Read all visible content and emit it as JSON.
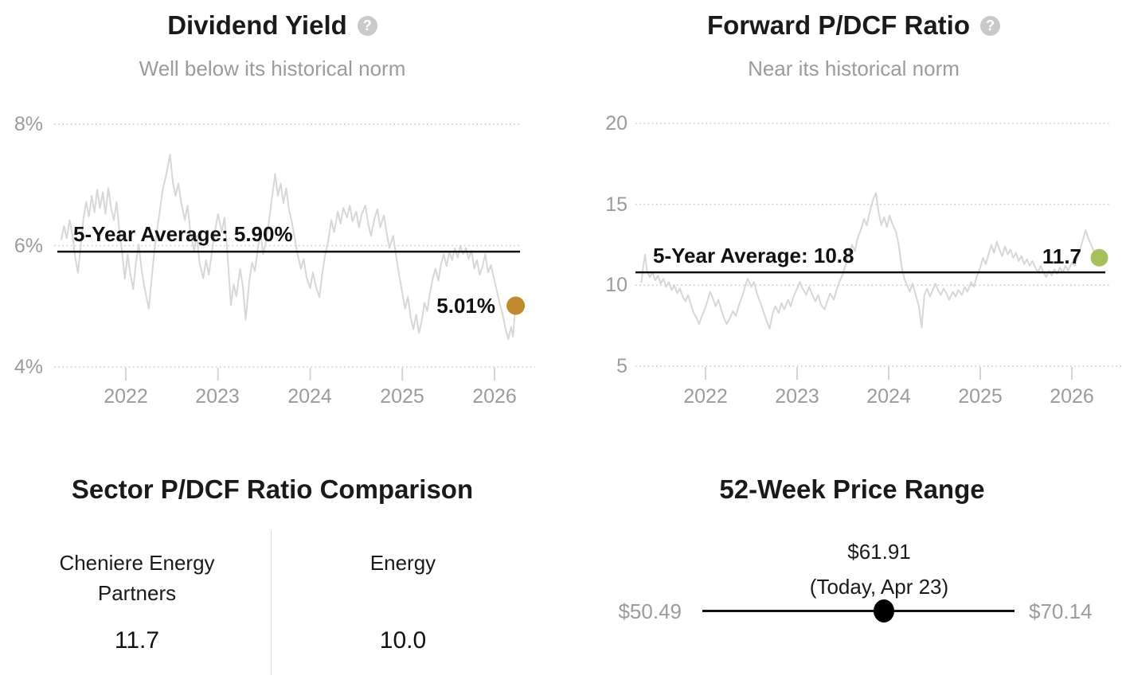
{
  "chart_data": [
    {
      "id": "dividend-yield",
      "type": "line",
      "title": "Dividend Yield",
      "subtitle": "Well below its historical norm",
      "help_glyph": "?",
      "y_tick_labels": [
        "8%",
        "6%",
        "4%"
      ],
      "y_tick_values": [
        8,
        6,
        4
      ],
      "x_tick_labels": [
        "2022",
        "2023",
        "2024",
        "2025",
        "2026"
      ],
      "x_tick_values": [
        2022,
        2023,
        2024,
        2025,
        2026
      ],
      "ylim": [
        4,
        8
      ],
      "xlim": [
        2021.3,
        2026.35
      ],
      "grid": "dotted horizontal",
      "average_label": "5-Year Average: 5.90%",
      "average_value": 5.9,
      "current_label": "5.01%",
      "current_value": 5.01,
      "dot_color": "#bf8b2e",
      "line_color": "#d7d7d7",
      "series": [
        [
          2021.3,
          6.1
        ],
        [
          2021.33,
          6.32
        ],
        [
          2021.36,
          6.12
        ],
        [
          2021.39,
          6.42
        ],
        [
          2021.42,
          6.18
        ],
        [
          2021.45,
          5.82
        ],
        [
          2021.48,
          5.55
        ],
        [
          2021.51,
          5.98
        ],
        [
          2021.54,
          6.45
        ],
        [
          2021.57,
          6.72
        ],
        [
          2021.6,
          6.48
        ],
        [
          2021.63,
          6.82
        ],
        [
          2021.66,
          6.55
        ],
        [
          2021.69,
          6.92
        ],
        [
          2021.72,
          6.62
        ],
        [
          2021.75,
          6.88
        ],
        [
          2021.78,
          6.52
        ],
        [
          2021.81,
          6.95
        ],
        [
          2021.84,
          6.62
        ],
        [
          2021.87,
          6.42
        ],
        [
          2021.9,
          6.72
        ],
        [
          2021.93,
          6.25
        ],
        [
          2021.96,
          5.88
        ],
        [
          2021.99,
          5.45
        ],
        [
          2022.02,
          5.85
        ],
        [
          2022.05,
          5.52
        ],
        [
          2022.08,
          5.28
        ],
        [
          2022.11,
          5.72
        ],
        [
          2022.14,
          6.02
        ],
        [
          2022.17,
          5.62
        ],
        [
          2022.2,
          5.32
        ],
        [
          2022.25,
          4.96
        ],
        [
          2022.28,
          5.45
        ],
        [
          2022.31,
          5.92
        ],
        [
          2022.34,
          6.28
        ],
        [
          2022.37,
          6.58
        ],
        [
          2022.4,
          6.92
        ],
        [
          2022.44,
          7.18
        ],
        [
          2022.48,
          7.5
        ],
        [
          2022.51,
          7.05
        ],
        [
          2022.54,
          6.82
        ],
        [
          2022.57,
          7.02
        ],
        [
          2022.6,
          6.72
        ],
        [
          2022.64,
          6.42
        ],
        [
          2022.67,
          6.66
        ],
        [
          2022.7,
          6.22
        ],
        [
          2022.74,
          5.92
        ],
        [
          2022.77,
          6.16
        ],
        [
          2022.8,
          5.72
        ],
        [
          2022.84,
          5.46
        ],
        [
          2022.87,
          5.76
        ],
        [
          2022.9,
          5.52
        ],
        [
          2022.94,
          5.96
        ],
        [
          2022.97,
          6.26
        ],
        [
          2023.0,
          6.52
        ],
        [
          2023.04,
          6.22
        ],
        [
          2023.07,
          6.46
        ],
        [
          2023.1,
          5.92
        ],
        [
          2023.14,
          5.02
        ],
        [
          2023.17,
          5.36
        ],
        [
          2023.2,
          5.16
        ],
        [
          2023.24,
          5.62
        ],
        [
          2023.27,
          5.32
        ],
        [
          2023.3,
          4.78
        ],
        [
          2023.34,
          5.42
        ],
        [
          2023.37,
          5.72
        ],
        [
          2023.4,
          5.58
        ],
        [
          2023.43,
          5.92
        ],
        [
          2023.46,
          6.22
        ],
        [
          2023.49,
          5.86
        ],
        [
          2023.52,
          6.06
        ],
        [
          2023.55,
          6.36
        ],
        [
          2023.58,
          6.72
        ],
        [
          2023.62,
          7.18
        ],
        [
          2023.65,
          6.82
        ],
        [
          2023.68,
          7.02
        ],
        [
          2023.71,
          6.7
        ],
        [
          2023.74,
          6.94
        ],
        [
          2023.77,
          6.6
        ],
        [
          2023.8,
          6.4
        ],
        [
          2023.83,
          6.14
        ],
        [
          2023.86,
          5.88
        ],
        [
          2023.9,
          5.62
        ],
        [
          2023.93,
          5.78
        ],
        [
          2023.96,
          5.48
        ],
        [
          2024.0,
          5.3
        ],
        [
          2024.03,
          5.56
        ],
        [
          2024.06,
          5.34
        ],
        [
          2024.1,
          5.15
        ],
        [
          2024.13,
          5.52
        ],
        [
          2024.16,
          5.82
        ],
        [
          2024.2,
          6.12
        ],
        [
          2024.23,
          6.42
        ],
        [
          2024.26,
          6.22
        ],
        [
          2024.3,
          6.56
        ],
        [
          2024.33,
          6.36
        ],
        [
          2024.36,
          6.62
        ],
        [
          2024.4,
          6.46
        ],
        [
          2024.43,
          6.66
        ],
        [
          2024.46,
          6.4
        ],
        [
          2024.5,
          6.56
        ],
        [
          2024.53,
          6.3
        ],
        [
          2024.56,
          6.52
        ],
        [
          2024.6,
          6.66
        ],
        [
          2024.63,
          6.36
        ],
        [
          2024.66,
          6.16
        ],
        [
          2024.7,
          6.46
        ],
        [
          2024.73,
          6.6
        ],
        [
          2024.76,
          6.3
        ],
        [
          2024.8,
          6.5
        ],
        [
          2024.83,
          6.2
        ],
        [
          2024.86,
          5.96
        ],
        [
          2024.9,
          6.16
        ],
        [
          2024.93,
          5.86
        ],
        [
          2024.96,
          5.56
        ],
        [
          2025.0,
          5.22
        ],
        [
          2025.03,
          4.96
        ],
        [
          2025.06,
          5.16
        ],
        [
          2025.09,
          4.82
        ],
        [
          2025.12,
          4.62
        ],
        [
          2025.15,
          4.86
        ],
        [
          2025.18,
          4.56
        ],
        [
          2025.21,
          4.76
        ],
        [
          2025.24,
          5.06
        ],
        [
          2025.27,
          4.92
        ],
        [
          2025.3,
          5.22
        ],
        [
          2025.33,
          5.46
        ],
        [
          2025.36,
          5.62
        ],
        [
          2025.39,
          5.42
        ],
        [
          2025.42,
          5.7
        ],
        [
          2025.45,
          5.86
        ],
        [
          2025.48,
          5.66
        ],
        [
          2025.51,
          5.9
        ],
        [
          2025.54,
          5.76
        ],
        [
          2025.57,
          5.96
        ],
        [
          2025.6,
          5.8
        ],
        [
          2025.63,
          6.0
        ],
        [
          2025.66,
          5.86
        ],
        [
          2025.69,
          5.96
        ],
        [
          2025.72,
          5.78
        ],
        [
          2025.75,
          5.92
        ],
        [
          2025.78,
          5.62
        ],
        [
          2025.81,
          5.76
        ],
        [
          2025.84,
          5.52
        ],
        [
          2025.87,
          5.66
        ],
        [
          2025.9,
          5.86
        ],
        [
          2025.93,
          5.56
        ],
        [
          2025.96,
          5.68
        ],
        [
          2026.0,
          5.42
        ],
        [
          2026.03,
          5.22
        ],
        [
          2026.06,
          5.02
        ],
        [
          2026.09,
          4.86
        ],
        [
          2026.12,
          4.62
        ],
        [
          2026.15,
          4.46
        ],
        [
          2026.18,
          4.66
        ],
        [
          2026.2,
          4.5
        ],
        [
          2026.22,
          4.88
        ],
        [
          2026.23,
          5.01
        ]
      ]
    },
    {
      "id": "forward-p-dcf",
      "type": "line",
      "title": "Forward P/DCF Ratio",
      "subtitle": "Near its historical norm",
      "help_glyph": "?",
      "y_tick_labels": [
        "20",
        "15",
        "10",
        "5"
      ],
      "y_tick_values": [
        20,
        15,
        10,
        5
      ],
      "x_tick_labels": [
        "2022",
        "2023",
        "2024",
        "2025",
        "2026"
      ],
      "x_tick_values": [
        2022,
        2023,
        2024,
        2025,
        2026
      ],
      "ylim": [
        5,
        20
      ],
      "xlim": [
        2021.3,
        2026.35
      ],
      "grid": "dotted horizontal",
      "average_label": "5-Year Average: 10.8",
      "average_value": 10.8,
      "current_label": "11.7",
      "current_value": 11.7,
      "dot_color": "#a5c05c",
      "line_color": "#d7d7d7",
      "series": [
        [
          2021.3,
          10.2
        ],
        [
          2021.32,
          11.2
        ],
        [
          2021.34,
          11.9
        ],
        [
          2021.36,
          10.9
        ],
        [
          2021.39,
          10.5
        ],
        [
          2021.42,
          10.8
        ],
        [
          2021.45,
          10.3
        ],
        [
          2021.48,
          10.6
        ],
        [
          2021.51,
          10.1
        ],
        [
          2021.54,
          10.4
        ],
        [
          2021.57,
          9.9
        ],
        [
          2021.6,
          10.2
        ],
        [
          2021.63,
          9.7
        ],
        [
          2021.66,
          10.0
        ],
        [
          2021.69,
          9.5
        ],
        [
          2021.72,
          9.8
        ],
        [
          2021.75,
          9.3
        ],
        [
          2021.78,
          9.0
        ],
        [
          2021.81,
          9.4
        ],
        [
          2021.84,
          8.8
        ],
        [
          2021.87,
          8.3
        ],
        [
          2021.9,
          8.0
        ],
        [
          2021.93,
          7.6
        ],
        [
          2021.96,
          8.1
        ],
        [
          2021.99,
          8.5
        ],
        [
          2022.02,
          9.0
        ],
        [
          2022.05,
          9.6
        ],
        [
          2022.08,
          9.2
        ],
        [
          2022.11,
          8.7
        ],
        [
          2022.14,
          9.1
        ],
        [
          2022.17,
          8.5
        ],
        [
          2022.2,
          8.0
        ],
        [
          2022.23,
          7.6
        ],
        [
          2022.26,
          7.9
        ],
        [
          2022.3,
          8.4
        ],
        [
          2022.33,
          8.1
        ],
        [
          2022.36,
          8.7
        ],
        [
          2022.4,
          9.3
        ],
        [
          2022.43,
          9.9
        ],
        [
          2022.46,
          10.4
        ],
        [
          2022.5,
          9.9
        ],
        [
          2022.53,
          10.2
        ],
        [
          2022.56,
          9.5
        ],
        [
          2022.6,
          8.9
        ],
        [
          2022.63,
          8.4
        ],
        [
          2022.66,
          7.9
        ],
        [
          2022.7,
          7.3
        ],
        [
          2022.73,
          8.2
        ],
        [
          2022.76,
          8.7
        ],
        [
          2022.8,
          8.3
        ],
        [
          2022.83,
          8.9
        ],
        [
          2022.86,
          8.5
        ],
        [
          2022.9,
          9.1
        ],
        [
          2022.93,
          8.7
        ],
        [
          2022.96,
          9.3
        ],
        [
          2023.0,
          9.8
        ],
        [
          2023.03,
          10.2
        ],
        [
          2023.06,
          9.8
        ],
        [
          2023.1,
          9.4
        ],
        [
          2023.13,
          9.9
        ],
        [
          2023.16,
          9.5
        ],
        [
          2023.2,
          9.0
        ],
        [
          2023.23,
          9.4
        ],
        [
          2023.26,
          8.8
        ],
        [
          2023.3,
          8.5
        ],
        [
          2023.33,
          9.0
        ],
        [
          2023.36,
          9.5
        ],
        [
          2023.4,
          9.1
        ],
        [
          2023.43,
          9.7
        ],
        [
          2023.46,
          10.2
        ],
        [
          2023.5,
          10.7
        ],
        [
          2023.53,
          11.3
        ],
        [
          2023.56,
          11.9
        ],
        [
          2023.6,
          12.5
        ],
        [
          2023.63,
          12.1
        ],
        [
          2023.66,
          12.9
        ],
        [
          2023.7,
          13.5
        ],
        [
          2023.73,
          14.1
        ],
        [
          2023.76,
          13.7
        ],
        [
          2023.8,
          14.7
        ],
        [
          2023.83,
          15.3
        ],
        [
          2023.86,
          15.7
        ],
        [
          2023.89,
          14.5
        ],
        [
          2023.92,
          13.7
        ],
        [
          2023.95,
          14.2
        ],
        [
          2023.98,
          13.6
        ],
        [
          2024.01,
          14.3
        ],
        [
          2024.04,
          13.8
        ],
        [
          2024.08,
          13.3
        ],
        [
          2024.11,
          12.5
        ],
        [
          2024.14,
          11.2
        ],
        [
          2024.17,
          10.4
        ],
        [
          2024.2,
          10.0
        ],
        [
          2024.23,
          9.6
        ],
        [
          2024.26,
          10.1
        ],
        [
          2024.3,
          9.3
        ],
        [
          2024.33,
          8.7
        ],
        [
          2024.36,
          7.4
        ],
        [
          2024.39,
          9.4
        ],
        [
          2024.42,
          9.8
        ],
        [
          2024.45,
          9.3
        ],
        [
          2024.48,
          9.7
        ],
        [
          2024.51,
          10.1
        ],
        [
          2024.54,
          9.7
        ],
        [
          2024.57,
          9.4
        ],
        [
          2024.6,
          9.8
        ],
        [
          2024.63,
          9.5
        ],
        [
          2024.66,
          9.1
        ],
        [
          2024.7,
          9.6
        ],
        [
          2024.73,
          9.3
        ],
        [
          2024.76,
          9.7
        ],
        [
          2024.8,
          9.4
        ],
        [
          2024.83,
          9.9
        ],
        [
          2024.86,
          9.6
        ],
        [
          2024.9,
          10.2
        ],
        [
          2024.93,
          9.9
        ],
        [
          2024.96,
          10.5
        ],
        [
          2025.0,
          11.1
        ],
        [
          2025.03,
          11.7
        ],
        [
          2025.06,
          11.3
        ],
        [
          2025.09,
          11.9
        ],
        [
          2025.12,
          12.5
        ],
        [
          2025.15,
          12.0
        ],
        [
          2025.18,
          12.7
        ],
        [
          2025.21,
          12.2
        ],
        [
          2025.24,
          11.8
        ],
        [
          2025.27,
          12.4
        ],
        [
          2025.3,
          11.9
        ],
        [
          2025.33,
          12.2
        ],
        [
          2025.36,
          11.7
        ],
        [
          2025.39,
          12.0
        ],
        [
          2025.42,
          11.5
        ],
        [
          2025.45,
          11.8
        ],
        [
          2025.48,
          11.3
        ],
        [
          2025.51,
          11.6
        ],
        [
          2025.54,
          11.2
        ],
        [
          2025.57,
          11.5
        ],
        [
          2025.6,
          11.1
        ],
        [
          2025.63,
          10.8
        ],
        [
          2025.66,
          11.2
        ],
        [
          2025.69,
          10.8
        ],
        [
          2025.72,
          10.5
        ],
        [
          2025.75,
          10.9
        ],
        [
          2025.78,
          10.6
        ],
        [
          2025.81,
          11.0
        ],
        [
          2025.84,
          10.7
        ],
        [
          2025.87,
          11.1
        ],
        [
          2025.9,
          10.8
        ],
        [
          2025.93,
          11.2
        ],
        [
          2025.96,
          10.9
        ],
        [
          2026.0,
          11.4
        ],
        [
          2026.03,
          11.2
        ],
        [
          2026.06,
          11.7
        ],
        [
          2026.09,
          12.2
        ],
        [
          2026.12,
          12.8
        ],
        [
          2026.15,
          13.4
        ],
        [
          2026.18,
          12.9
        ],
        [
          2026.21,
          12.5
        ],
        [
          2026.24,
          12.1
        ],
        [
          2026.27,
          11.9
        ],
        [
          2026.3,
          11.7
        ]
      ]
    }
  ],
  "comparison": {
    "title": "Sector P/DCF Ratio Comparison",
    "left": {
      "name_line1": "Cheniere Energy",
      "name_line2": "Partners",
      "value": "11.7"
    },
    "right": {
      "name_line1": "Energy",
      "name_line2": "",
      "value": "10.0"
    }
  },
  "price_range": {
    "title": "52-Week Price Range",
    "current_label": "$61.91",
    "current_note": "(Today, Apr 23)",
    "low_label": "$50.49",
    "high_label": "$70.14",
    "low_value": 50.49,
    "high_value": 70.14,
    "current_value": 61.91
  },
  "colors": {
    "dividend_dot": "#bf8b2e",
    "pdcf_dot": "#a5c05c",
    "series_line": "#d7d7d7",
    "average_line": "#111111",
    "grid": "#c9c9c9",
    "muted_text": "#9b9b9b",
    "dark_text": "#1a1a1a"
  }
}
